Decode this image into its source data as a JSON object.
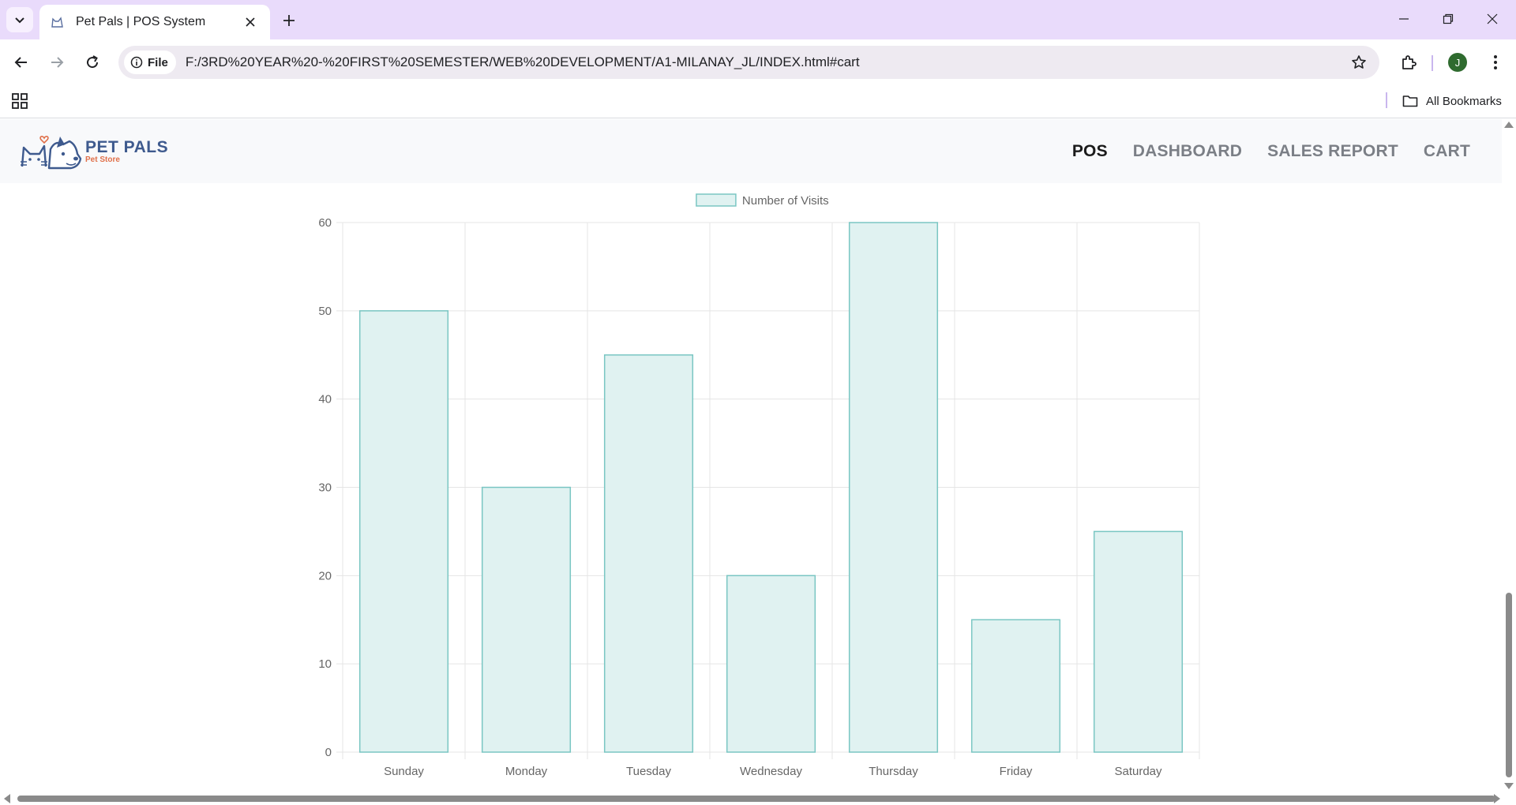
{
  "browser": {
    "tab": {
      "title": "Pet Pals | POS System"
    },
    "address": {
      "chip_label": "File",
      "url": "F:/3RD%20YEAR%20-%20FIRST%20SEMESTER/WEB%20DEVELOPMENT/A1-MILANAY_JL/INDEX.html#cart"
    },
    "profile_initial": "J",
    "bookmarks": {
      "all_label": "All Bookmarks"
    },
    "icons": [
      "tab-search-icon",
      "cat-favicon-icon",
      "close-icon",
      "plus-icon",
      "minimize-icon",
      "restore-icon",
      "close-window-icon",
      "back-arrow-icon",
      "forward-arrow-icon",
      "reload-icon",
      "info-icon",
      "star-icon",
      "extensions-icon",
      "more-vert-icon",
      "apps-grid-icon",
      "folder-icon"
    ]
  },
  "site": {
    "logo": {
      "title": "PET PALS",
      "subtitle": "Pet Store"
    },
    "nav": [
      {
        "label": "POS",
        "active": true
      },
      {
        "label": "DASHBOARD",
        "active": false
      },
      {
        "label": "SALES REPORT",
        "active": false
      },
      {
        "label": "CART",
        "active": false
      }
    ]
  },
  "colors": {
    "bar_fill": "#e0f2f1",
    "bar_stroke": "#7ac6c3",
    "grid": "#e5e5e5",
    "tick_text": "#666666",
    "nav_active": "#1b1b1b",
    "nav_inactive": "#7b7f86",
    "logo_blue": "#3e5a8e",
    "logo_orange": "#e0704a"
  },
  "chart_data": {
    "type": "bar",
    "categories": [
      "Sunday",
      "Monday",
      "Tuesday",
      "Wednesday",
      "Thursday",
      "Friday",
      "Saturday"
    ],
    "series": [
      {
        "name": "Number of Visits",
        "values": [
          50,
          30,
          45,
          20,
          60,
          15,
          25
        ]
      }
    ],
    "title": "",
    "xlabel": "",
    "ylabel": "",
    "ylim": [
      0,
      60
    ],
    "yticks": [
      0,
      10,
      20,
      30,
      40,
      50,
      60
    ],
    "grid": true,
    "legend": "top-center"
  }
}
